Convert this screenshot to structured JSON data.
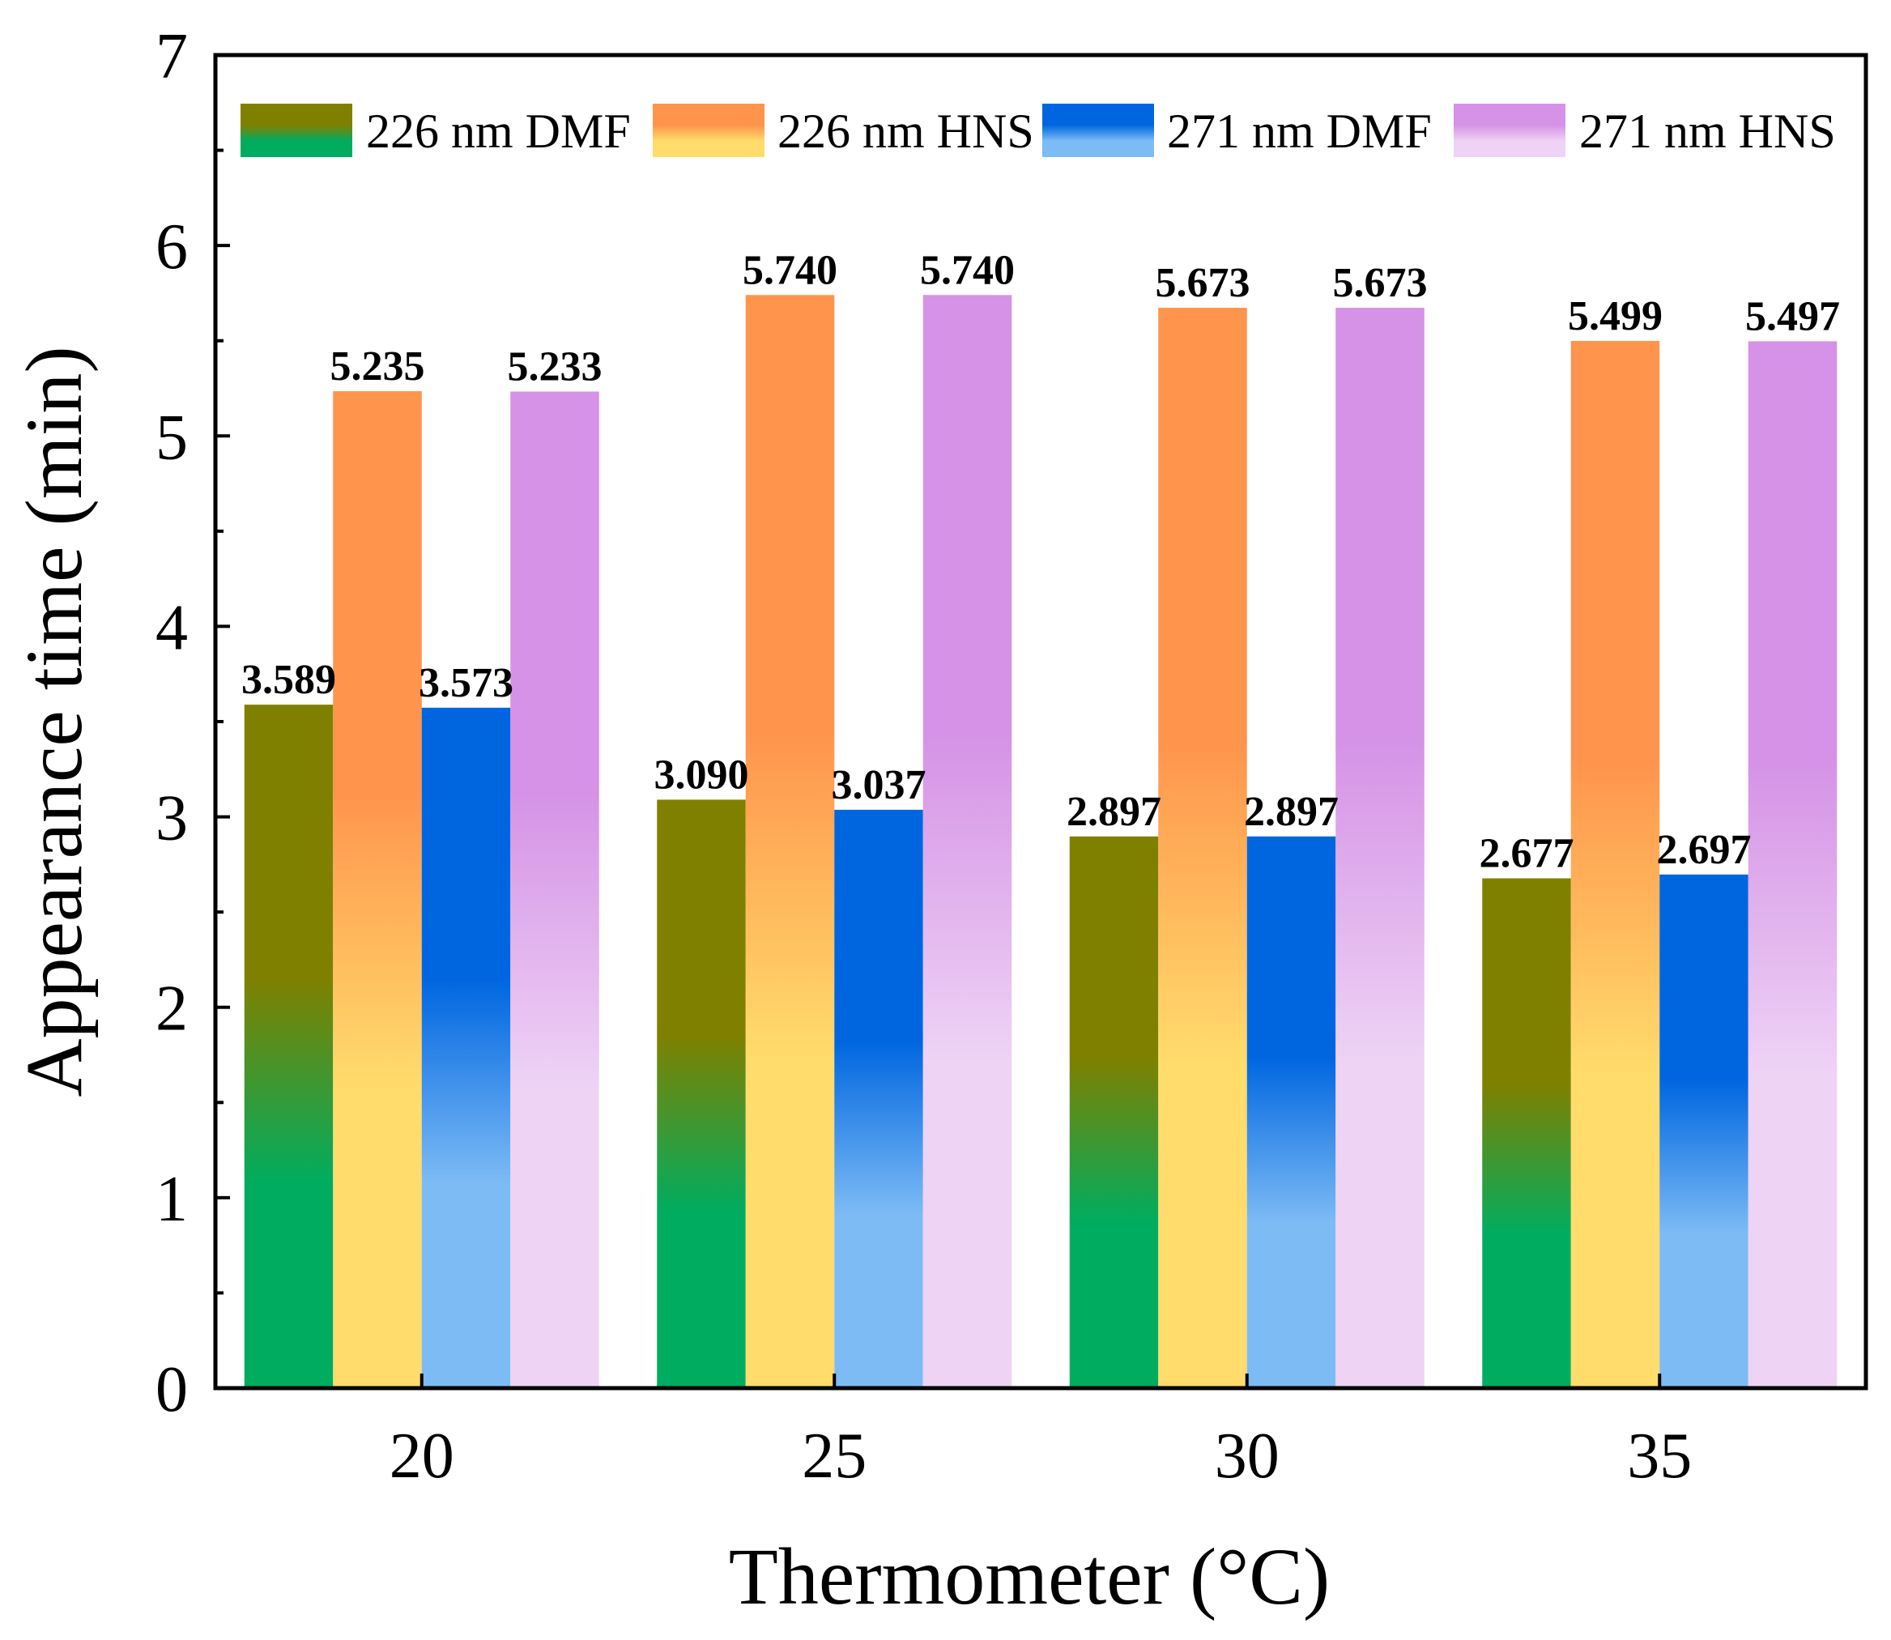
{
  "chart_data": {
    "type": "bar",
    "categories": [
      "20",
      "25",
      "30",
      "35"
    ],
    "series": [
      {
        "name": "226 nm DMF",
        "values": [
          3.589,
          3.09,
          2.897,
          2.677
        ],
        "labels": [
          "3.589",
          "3.090",
          "2.897",
          "2.677"
        ],
        "colors": [
          "#808000",
          "#00AD60"
        ]
      },
      {
        "name": "226 nm HNS",
        "values": [
          5.235,
          5.74,
          5.673,
          5.499
        ],
        "labels": [
          "5.235",
          "5.740",
          "5.673",
          "5.499"
        ],
        "colors": [
          "#FF944D",
          "#FFDC6C"
        ]
      },
      {
        "name": "271 nm DMF",
        "values": [
          3.573,
          3.037,
          2.897,
          2.697
        ],
        "labels": [
          "3.573",
          "3.037",
          "2.897",
          "2.697"
        ],
        "colors": [
          "#0066E0",
          "#7DBBF5"
        ]
      },
      {
        "name": "271 nm HNS",
        "values": [
          5.233,
          5.74,
          5.673,
          5.497
        ],
        "labels": [
          "5.233",
          "5.740",
          "5.673",
          "5.497"
        ],
        "colors": [
          "#D592E6",
          "#EED3F5"
        ]
      }
    ],
    "xlabel": "Thermometer (°C)",
    "ylabel": "Appearance time (min)",
    "ylim": [
      0,
      7
    ],
    "yticks": [
      "0",
      "1",
      "2",
      "3",
      "4",
      "5",
      "6",
      "7"
    ],
    "legend": "top, single row inside plot",
    "grid": false
  }
}
